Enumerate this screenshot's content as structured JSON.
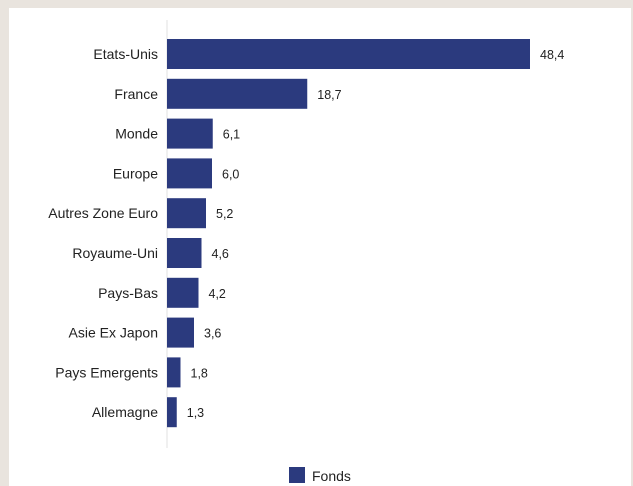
{
  "chart_data": {
    "type": "bar",
    "orientation": "horizontal",
    "categories": [
      "Etats-Unis",
      "France",
      "Monde",
      "Europe",
      "Autres Zone Euro",
      "Royaume-Uni",
      "Pays-Bas",
      "Asie Ex Japon",
      "Pays Emergents",
      "Allemagne"
    ],
    "value_labels": [
      "48,4",
      "18,7",
      "6,1",
      "6,0",
      "5,2",
      "4,6",
      "4,2",
      "3,6",
      "1,8",
      "1,3"
    ],
    "series": [
      {
        "name": "Fonds",
        "values": [
          48.4,
          18.7,
          6.1,
          6.0,
          5.2,
          4.6,
          4.2,
          3.6,
          1.8,
          1.3
        ],
        "color": "#2b3a7e"
      }
    ],
    "title": "",
    "xlabel": "",
    "ylabel": "",
    "xlim": [
      0,
      50
    ],
    "grid": false,
    "legend_position": "bottom-center"
  }
}
